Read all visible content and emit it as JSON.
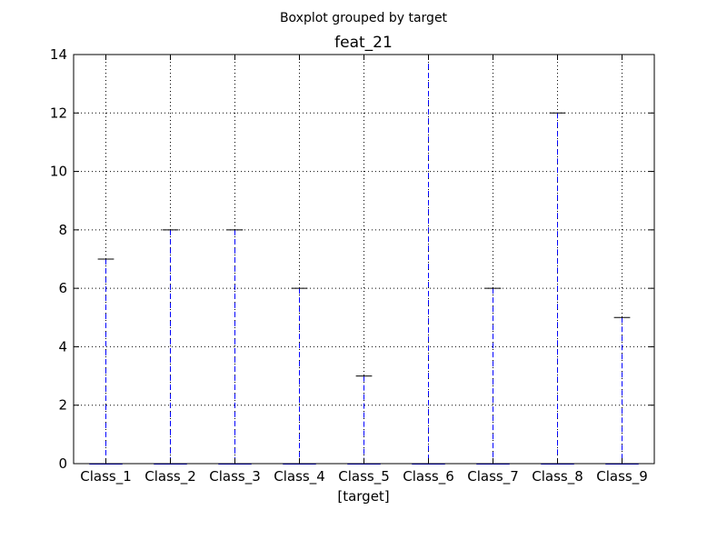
{
  "chart_data": {
    "type": "box",
    "suptitle": "Boxplot grouped by target",
    "title": "feat_21",
    "xlabel": "[target]",
    "ylabel": "",
    "ylim": [
      0,
      14
    ],
    "yticks": [
      0,
      2,
      4,
      6,
      8,
      10,
      12,
      14
    ],
    "grid": true,
    "categories": [
      "Class_1",
      "Class_2",
      "Class_3",
      "Class_4",
      "Class_5",
      "Class_6",
      "Class_7",
      "Class_8",
      "Class_9"
    ],
    "boxes": [
      {
        "min": 0,
        "q1": 0,
        "median": 0,
        "q3": 0,
        "max": 7
      },
      {
        "min": 0,
        "q1": 0,
        "median": 0,
        "q3": 0,
        "max": 8
      },
      {
        "min": 0,
        "q1": 0,
        "median": 0,
        "q3": 0,
        "max": 8
      },
      {
        "min": 0,
        "q1": 0,
        "median": 0,
        "q3": 0,
        "max": 6
      },
      {
        "min": 0,
        "q1": 0,
        "median": 0,
        "q3": 0,
        "max": 3
      },
      {
        "min": 0,
        "q1": 0,
        "median": 0,
        "q3": 0,
        "max": 14
      },
      {
        "min": 0,
        "q1": 0,
        "median": 0,
        "q3": 0,
        "max": 6
      },
      {
        "min": 0,
        "q1": 0,
        "median": 0,
        "q3": 0,
        "max": 12
      },
      {
        "min": 0,
        "q1": 0,
        "median": 0,
        "q3": 0,
        "max": 5
      }
    ],
    "colors": {
      "whisker": "#0000ff",
      "box": "#0000ff",
      "median": "#ff0000",
      "cap": "#000000",
      "grid": "#000000"
    }
  }
}
